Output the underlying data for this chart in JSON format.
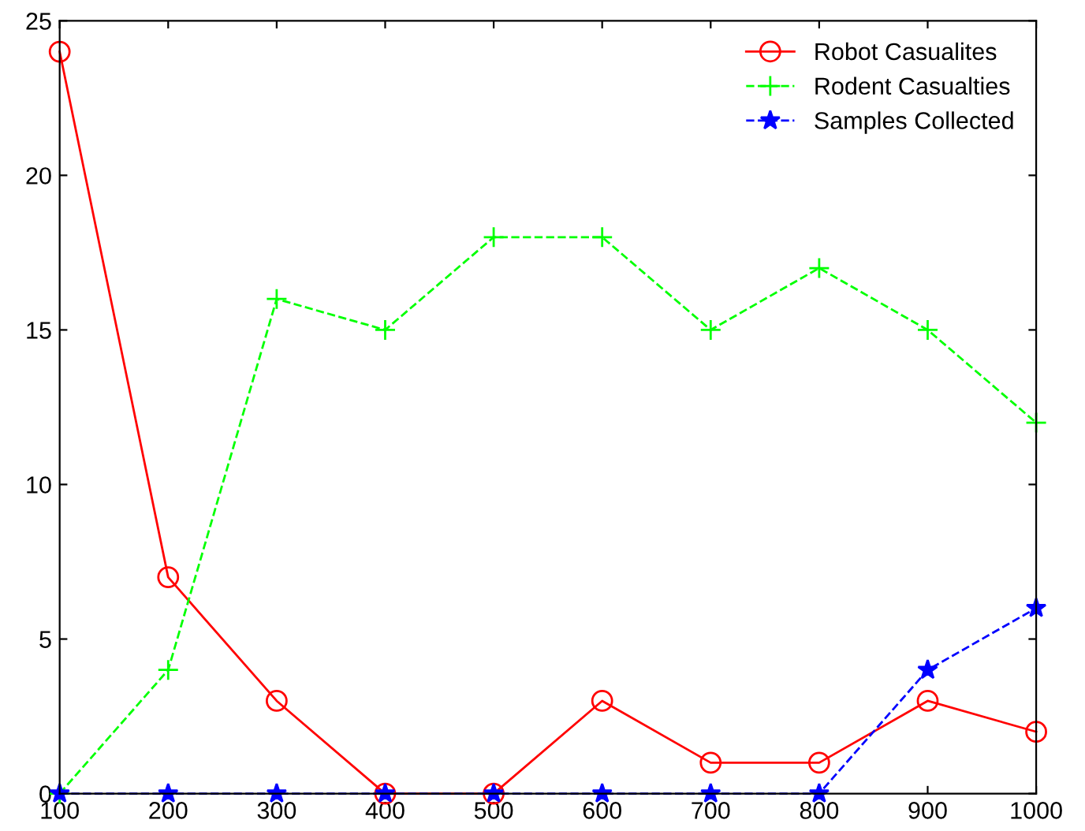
{
  "chart_data": {
    "type": "line",
    "x": [
      100,
      200,
      300,
      400,
      500,
      600,
      700,
      800,
      900,
      1000
    ],
    "series": [
      {
        "name": "Robot Casualites",
        "color": "#ff0000",
        "marker": "circle",
        "line_style": "solid",
        "values": [
          24,
          7,
          3,
          0,
          0,
          3,
          1,
          1,
          3,
          2
        ]
      },
      {
        "name": "Rodent Casualties",
        "color": "#00ff00",
        "marker": "cross",
        "line_style": "dashed",
        "values": [
          0,
          4,
          16,
          15,
          18,
          18,
          15,
          17,
          15,
          12
        ]
      },
      {
        "name": "Samples Collected",
        "color": "#0000ff",
        "marker": "star",
        "line_style": "dashed",
        "values": [
          0,
          0,
          0,
          0,
          0,
          0,
          0,
          0,
          4,
          6
        ]
      }
    ],
    "xlim": [
      100,
      1000
    ],
    "xticks": [
      100,
      200,
      300,
      400,
      500,
      600,
      700,
      800,
      900,
      1000
    ],
    "ylim": [
      0,
      25
    ],
    "yticks": [
      0,
      5,
      10,
      15,
      20,
      25
    ],
    "grid": false,
    "legend": "top right"
  }
}
